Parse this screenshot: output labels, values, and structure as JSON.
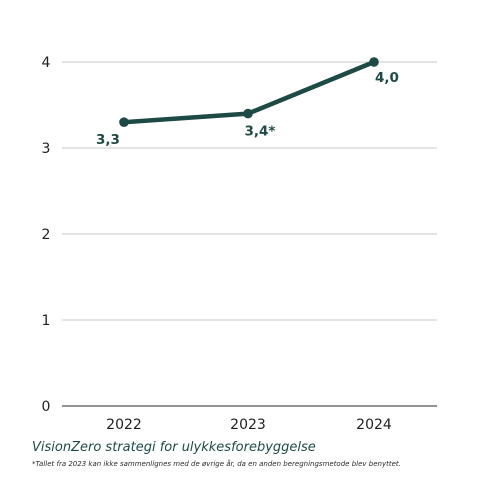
{
  "chart_data": {
    "type": "line",
    "categories": [
      "2022",
      "2023",
      "2024"
    ],
    "series": [
      {
        "values": [
          3.3,
          3.4,
          4.0
        ]
      }
    ],
    "data_labels": [
      "3,3",
      "3,4*",
      "4,0"
    ],
    "yticks": [
      "0",
      "1",
      "2",
      "3",
      "4"
    ],
    "ylim": [
      0,
      4
    ],
    "grid": true,
    "line_color": "#1d4a44",
    "grid_color": "#c8c8c8"
  },
  "caption": "VisionZero strategi for ulykkesforebyggelse",
  "footnote": "*Tallet fra 2023 kan ikke sammenlignes med de øvrige år, da en anden beregningsmetode blev benyttet."
}
